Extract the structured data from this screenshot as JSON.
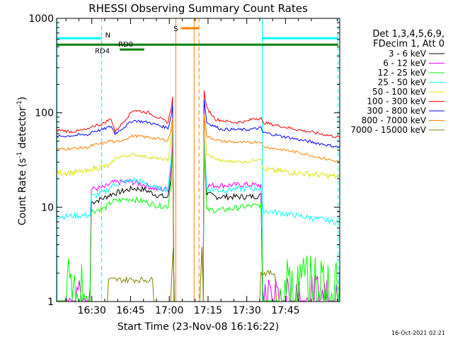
{
  "chart_data": {
    "type": "line",
    "title": "RHESSI Observing Summary Count Rates",
    "xlabel": "Start Time (23-Nov-08 16:16:22)",
    "ylabel": "Count Rate (s⁻¹ detector⁻¹)",
    "ylabel_main": "Count Rate (s",
    "ylabel_sup1": "-1",
    "ylabel_mid": " detector",
    "ylabel_sup2": "-1",
    "ylabel_end": ")",
    "xunit": "minutes after 16:00",
    "xlim": [
      16.37,
      126.0
    ],
    "ylim": [
      1,
      1000
    ],
    "yscale": "log",
    "x_ticks": [
      {
        "x": 30,
        "label": "16:30"
      },
      {
        "x": 45,
        "label": "16:45"
      },
      {
        "x": 60,
        "label": "17:00"
      },
      {
        "x": 75,
        "label": "17:15"
      },
      {
        "x": 90,
        "label": "17:30"
      },
      {
        "x": 105,
        "label": "17:45"
      }
    ],
    "y_ticks": [
      {
        "y": 1,
        "label": "1"
      },
      {
        "y": 10,
        "label": "10"
      },
      {
        "y": 100,
        "label": "100"
      },
      {
        "y": 1000,
        "label": "1000"
      }
    ],
    "legend_lines": [
      "Det 1,3,4,5,6,9,",
      "FDecim 1, Att 0"
    ],
    "timestamp": "16-Oct-2021 02:21",
    "series": [
      {
        "name": "3 - 6 keV",
        "color": "#000000",
        "points": [
          [
            16.4,
            1
          ],
          [
            29.3,
            1
          ],
          [
            29.8,
            11.2
          ],
          [
            35,
            12.6
          ],
          [
            37.5,
            13.8
          ],
          [
            39,
            14.1
          ],
          [
            46,
            15.8
          ],
          [
            50,
            15.5
          ],
          [
            55,
            13.5
          ],
          [
            59.5,
            12.6
          ],
          [
            60.6,
            20
          ],
          [
            61.3,
            45
          ],
          [
            61.8,
            1
          ],
          [
            73.1,
            1
          ],
          [
            73.5,
            45
          ],
          [
            74.5,
            13.8
          ],
          [
            78,
            12.9
          ],
          [
            85,
            12.9
          ],
          [
            90,
            12.9
          ],
          [
            95.5,
            13.2
          ],
          [
            96.2,
            1
          ],
          [
            126,
            1
          ]
        ]
      },
      {
        "name": "6 - 12 keV",
        "color": "#ff00ff",
        "points": [
          [
            16.4,
            1.5
          ],
          [
            29.3,
            1.5
          ],
          [
            29.8,
            15.5
          ],
          [
            35,
            16.2
          ],
          [
            38,
            18.2
          ],
          [
            45,
            18.6
          ],
          [
            50,
            17.4
          ],
          [
            55,
            15.5
          ],
          [
            59.5,
            15.5
          ],
          [
            60.6,
            25
          ],
          [
            61.3,
            52
          ],
          [
            61.8,
            1
          ],
          [
            73.1,
            1
          ],
          [
            73.5,
            52
          ],
          [
            74.5,
            17
          ],
          [
            80,
            17
          ],
          [
            90,
            17.4
          ],
          [
            95.5,
            17
          ],
          [
            96.2,
            1.5
          ],
          [
            126,
            1.5
          ]
        ]
      },
      {
        "name": "12 - 25 keV",
        "color": "#00ff00",
        "points": [
          [
            16.4,
            2.4
          ],
          [
            29.3,
            2.4
          ],
          [
            29.8,
            9
          ],
          [
            35,
            9.8
          ],
          [
            38,
            11.5
          ],
          [
            45,
            12.3
          ],
          [
            50,
            11.5
          ],
          [
            55,
            10.5
          ],
          [
            59.5,
            10.2
          ],
          [
            60.6,
            18
          ],
          [
            61.3,
            40
          ],
          [
            61.8,
            1
          ],
          [
            73.1,
            1
          ],
          [
            73.5,
            40
          ],
          [
            74.5,
            9.3
          ],
          [
            80,
            9.3
          ],
          [
            90,
            10.2
          ],
          [
            95.5,
            10.5
          ],
          [
            96.2,
            2.4
          ],
          [
            126,
            2.4
          ]
        ]
      },
      {
        "name": "25 - 50 keV",
        "color": "#00ffff",
        "points": [
          [
            16.4,
            8
          ],
          [
            29.3,
            8.2
          ],
          [
            29.8,
            12.9
          ],
          [
            35,
            14.4
          ],
          [
            37.5,
            16.6
          ],
          [
            39,
            17.4
          ],
          [
            46,
            19.5
          ],
          [
            50,
            18.2
          ],
          [
            55,
            15.8
          ],
          [
            59.5,
            15.5
          ],
          [
            60.6,
            28
          ],
          [
            61.3,
            70
          ],
          [
            61.8,
            1
          ],
          [
            73.1,
            1
          ],
          [
            73.5,
            60
          ],
          [
            74.5,
            15.5
          ],
          [
            80,
            15.1
          ],
          [
            90,
            15.8
          ],
          [
            95.5,
            15.8
          ],
          [
            96.2,
            9.3
          ],
          [
            126,
            6.9
          ]
        ]
      },
      {
        "name": "50 - 100 keV",
        "color": "#e0e000",
        "points": [
          [
            16.4,
            22.9
          ],
          [
            29.3,
            24
          ],
          [
            29.8,
            25.7
          ],
          [
            37.5,
            27.5
          ],
          [
            39,
            33.1
          ],
          [
            46,
            36.3
          ],
          [
            52,
            33.8
          ],
          [
            59.5,
            31.6
          ],
          [
            60.6,
            50
          ],
          [
            61.3,
            90
          ],
          [
            61.8,
            1
          ],
          [
            73.1,
            1
          ],
          [
            73.5,
            100
          ],
          [
            74.5,
            36.3
          ],
          [
            80,
            30.9
          ],
          [
            90,
            30.2
          ],
          [
            95.5,
            33.1
          ],
          [
            96.2,
            25.1
          ],
          [
            126,
            20.9
          ]
        ]
      },
      {
        "name": "100 - 300 keV",
        "color": "#ff0000",
        "points": [
          [
            16.4,
            66
          ],
          [
            22,
            63
          ],
          [
            29.3,
            67
          ],
          [
            29.8,
            72
          ],
          [
            34,
            76
          ],
          [
            37.5,
            87
          ],
          [
            39,
            63
          ],
          [
            46,
            107
          ],
          [
            52,
            100
          ],
          [
            59.5,
            79
          ],
          [
            60.6,
            110
          ],
          [
            61.3,
            145
          ],
          [
            61.8,
            1
          ],
          [
            73.1,
            1
          ],
          [
            73.5,
            170
          ],
          [
            74.5,
            112
          ],
          [
            78,
            85
          ],
          [
            85,
            79
          ],
          [
            90,
            81
          ],
          [
            92.5,
            87
          ],
          [
            95.5,
            87
          ],
          [
            96.2,
            79
          ],
          [
            110,
            66
          ],
          [
            126,
            55
          ]
        ]
      },
      {
        "name": "300 - 800 keV",
        "color": "#0000ff",
        "points": [
          [
            16.4,
            56
          ],
          [
            29.3,
            59
          ],
          [
            29.8,
            63
          ],
          [
            34,
            66
          ],
          [
            37.5,
            72
          ],
          [
            39,
            60
          ],
          [
            46,
            83
          ],
          [
            52,
            79
          ],
          [
            59.5,
            69
          ],
          [
            60.6,
            90
          ],
          [
            61.3,
            120
          ],
          [
            61.8,
            1
          ],
          [
            73.1,
            1
          ],
          [
            73.5,
            140
          ],
          [
            74.5,
            79
          ],
          [
            80,
            67
          ],
          [
            90,
            66
          ],
          [
            95.5,
            69
          ],
          [
            96.2,
            62
          ],
          [
            110,
            52
          ],
          [
            126,
            43
          ]
        ]
      },
      {
        "name": "800 - 7000 keV",
        "color": "#ff8000",
        "points": [
          [
            16.4,
            41
          ],
          [
            29.3,
            43
          ],
          [
            29.8,
            45
          ],
          [
            34,
            47
          ],
          [
            37.5,
            51
          ],
          [
            39,
            48
          ],
          [
            46,
            57
          ],
          [
            52,
            55
          ],
          [
            59.5,
            51
          ],
          [
            60.6,
            65
          ],
          [
            61.3,
            90
          ],
          [
            61.8,
            1
          ],
          [
            73.1,
            1
          ],
          [
            73.5,
            100
          ],
          [
            74.5,
            56
          ],
          [
            80,
            50
          ],
          [
            90,
            48
          ],
          [
            95.5,
            50
          ],
          [
            96.2,
            44
          ],
          [
            110,
            38
          ],
          [
            126,
            30
          ]
        ]
      },
      {
        "name": "7000 - 15000 keV",
        "color": "#808000",
        "points": [
          [
            16.4,
            1
          ],
          [
            36,
            1
          ],
          [
            36.5,
            1.7
          ],
          [
            53.5,
            1.7
          ],
          [
            54,
            1
          ],
          [
            60.5,
            1
          ],
          [
            61.5,
            4
          ],
          [
            62,
            1
          ],
          [
            71.8,
            1
          ],
          [
            72.6,
            4
          ],
          [
            73.2,
            1
          ],
          [
            95,
            1
          ],
          [
            95.5,
            2
          ],
          [
            101,
            2
          ],
          [
            101.5,
            1
          ],
          [
            126,
            1
          ]
        ]
      }
    ],
    "markers": {
      "vlines_cyan": [
        33.8,
        96.0,
        125.4
      ],
      "vline_orange_solid": [
        62.5,
        69.6
      ],
      "vline_orange_dashed": [
        71.5
      ],
      "bars": [
        {
          "label": "N",
          "y_frac": 0.93,
          "segments": [
            [
              16.4,
              33.8
            ],
            [
              96,
              125.4
            ]
          ],
          "color": "#00ffff"
        },
        {
          "label": "S",
          "y_frac": 0.965,
          "segments": [
            [
              64.5,
              71.5
            ]
          ],
          "color": "#ff8000"
        },
        {
          "label": "RD4",
          "y_frac": 0.907,
          "segments": [
            [
              16.4,
              125.4
            ]
          ],
          "color": "#008000"
        },
        {
          "label": "RD0",
          "y_frac": 0.89,
          "segments": [
            [
              40.8,
              50.3
            ]
          ],
          "color": "#008000"
        }
      ]
    }
  }
}
